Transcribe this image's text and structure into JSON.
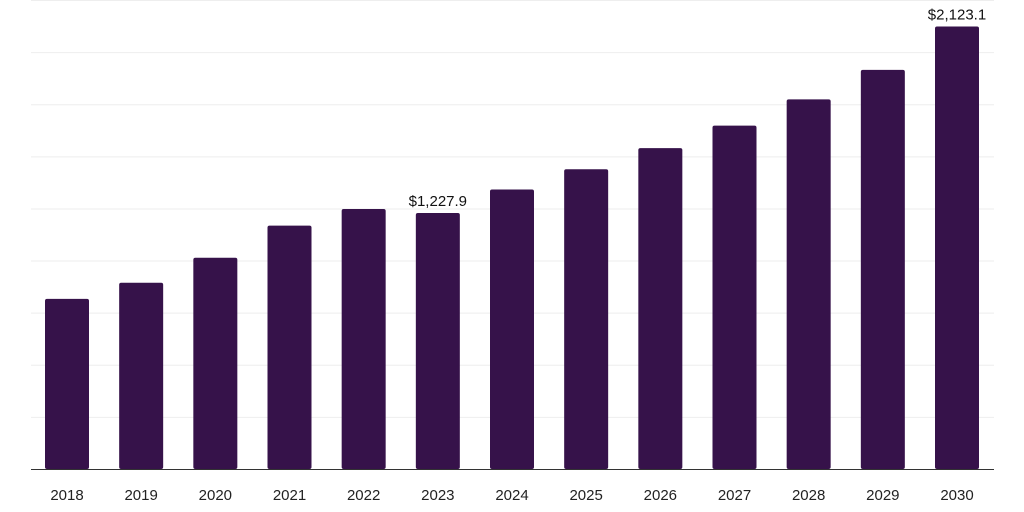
{
  "chart_data": {
    "type": "bar",
    "title": "",
    "xlabel": "",
    "ylabel": "",
    "categories": [
      "2018",
      "2019",
      "2020",
      "2021",
      "2022",
      "2023",
      "2024",
      "2025",
      "2026",
      "2027",
      "2028",
      "2029",
      "2030"
    ],
    "values": [
      816.0,
      893.5,
      1013.6,
      1167.8,
      1247.2,
      1227.9,
      1340.9,
      1437.9,
      1539.3,
      1647.6,
      1773.5,
      1915.0,
      2123.1
    ],
    "data_labels": [
      {
        "category": "2023",
        "text": "$1,227.9"
      },
      {
        "category": "2030",
        "text": "$2,123.1"
      }
    ],
    "ylim": [
      0,
      2250
    ],
    "grid": true,
    "legend": "none",
    "bar_color": "#36124a",
    "grid_color": "#eeeeee",
    "axis_color": "#333333"
  }
}
